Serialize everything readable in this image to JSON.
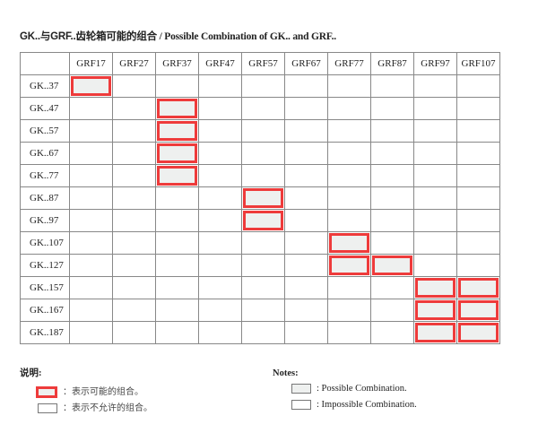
{
  "title": {
    "cn": "GK..与GRF..齿轮箱可能的组合",
    "en": " / Possible Combination of GK.. and GRF.."
  },
  "columns": [
    "GRF17",
    "GRF27",
    "GRF37",
    "GRF47",
    "GRF57",
    "GRF67",
    "GRF77",
    "GRF87",
    "GRF97",
    "GRF107"
  ],
  "rows": [
    {
      "label": "GK..37",
      "possible": [
        "GRF17"
      ]
    },
    {
      "label": "GK..47",
      "possible": [
        "GRF37"
      ]
    },
    {
      "label": "GK..57",
      "possible": [
        "GRF37"
      ]
    },
    {
      "label": "GK..67",
      "possible": [
        "GRF37"
      ]
    },
    {
      "label": "GK..77",
      "possible": [
        "GRF37"
      ]
    },
    {
      "label": "GK..87",
      "possible": [
        "GRF57"
      ]
    },
    {
      "label": "GK..97",
      "possible": [
        "GRF57"
      ]
    },
    {
      "label": "GK..107",
      "possible": [
        "GRF77"
      ]
    },
    {
      "label": "GK..127",
      "possible": [
        "GRF77",
        "GRF87"
      ]
    },
    {
      "label": "GK..157",
      "possible": [
        "GRF97",
        "GRF107"
      ]
    },
    {
      "label": "GK..167",
      "possible": [
        "GRF97",
        "GRF107"
      ]
    },
    {
      "label": "GK..187",
      "possible": [
        "GRF97",
        "GRF107"
      ]
    }
  ],
  "legend_cn": {
    "heading": "说明:",
    "possible": "：表示可能的组合。",
    "impossible": "：表示不允许的组合。"
  },
  "legend_en": {
    "heading": "Notes:",
    "possible": ": Possible Combination.",
    "impossible": ": Impossible Combination."
  },
  "colors": {
    "highlight": "#ee3b3b",
    "fill": "#eef0ef"
  }
}
